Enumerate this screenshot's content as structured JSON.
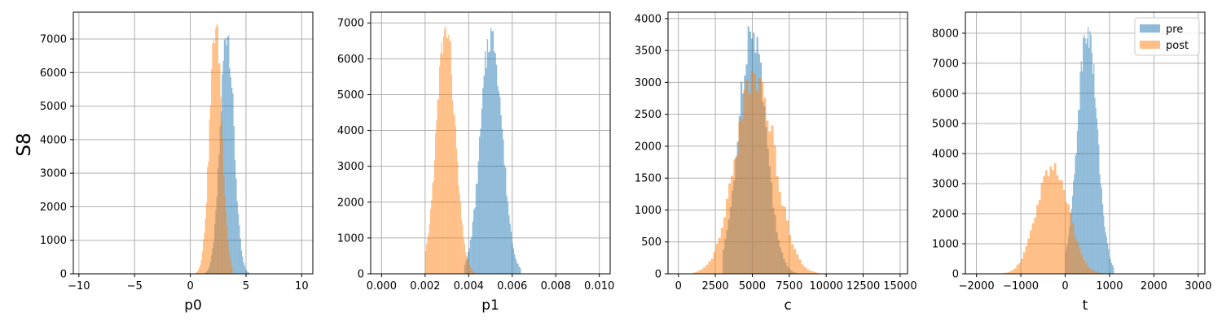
{
  "figure": {
    "row_label": "S8",
    "series_colors": {
      "pre": "#1f77b4",
      "post": "#ff7f0e"
    },
    "bar_alpha": 0.5,
    "legend": {
      "placement": "top-right",
      "panel": 3,
      "entries": [
        "pre",
        "post"
      ]
    }
  },
  "chart_data": [
    {
      "type": "histogram",
      "xlabel": "p0",
      "xlim": [
        -10.5,
        11.0
      ],
      "ylim": [
        0,
        7800
      ],
      "xticks": [
        -10,
        -5,
        0,
        5,
        10
      ],
      "xtick_labels": [
        "−10",
        "−5",
        "0",
        "5",
        "10"
      ],
      "yticks": [
        0,
        1000,
        2000,
        3000,
        4000,
        5000,
        6000,
        7000
      ],
      "yscale": "linear",
      "grid": true,
      "series": [
        {
          "name": "pre",
          "peak_center": 3.3,
          "peak_value": 7400,
          "spread": 0.6,
          "range": [
            1.0,
            5.8
          ]
        },
        {
          "name": "post",
          "peak_center": 2.3,
          "peak_value": 7550,
          "spread": 0.55,
          "range": [
            -0.8,
            3.8
          ]
        }
      ]
    },
    {
      "type": "histogram",
      "xlabel": "p1",
      "xlim": [
        -0.0005,
        0.0105
      ],
      "ylim": [
        0,
        7300
      ],
      "xticks": [
        0.0,
        0.002,
        0.004,
        0.006,
        0.008,
        0.01
      ],
      "xtick_labels": [
        "0.000",
        "0.002",
        "0.004",
        "0.006",
        "0.008",
        "0.010"
      ],
      "yticks": [
        0,
        1000,
        2000,
        3000,
        4000,
        5000,
        6000,
        7000
      ],
      "yscale": "linear",
      "grid": true,
      "series": [
        {
          "name": "pre",
          "peak_center": 0.00505,
          "peak_value": 6900,
          "spread": 0.00048,
          "range": [
            0.0038,
            0.0064
          ]
        },
        {
          "name": "post",
          "peak_center": 0.00295,
          "peak_value": 6950,
          "spread": 0.00042,
          "range": [
            0.002,
            0.0043
          ]
        }
      ]
    },
    {
      "type": "histogram",
      "xlabel": "c",
      "xlim": [
        -700,
        15500
      ],
      "ylim": [
        0,
        4100
      ],
      "xticks": [
        0,
        2500,
        5000,
        7500,
        10000,
        12500,
        15000
      ],
      "xtick_labels": [
        "0",
        "2500",
        "5000",
        "7500",
        "10000",
        "12500",
        "15000"
      ],
      "yticks": [
        0,
        500,
        1000,
        1500,
        2000,
        2500,
        3000,
        3500,
        4000
      ],
      "yscale": "linear",
      "grid": true,
      "series": [
        {
          "name": "pre",
          "peak_center": 5000,
          "peak_value": 3950,
          "spread": 900,
          "range": [
            3000,
            9000
          ]
        },
        {
          "name": "post",
          "peak_center": 5200,
          "peak_value": 3200,
          "spread": 1300,
          "range": [
            1000,
            9500
          ]
        }
      ]
    },
    {
      "type": "histogram",
      "xlabel": "t",
      "xlim": [
        -2250,
        3150
      ],
      "ylim": [
        0,
        8700
      ],
      "xticks": [
        -2000,
        -1000,
        0,
        1000,
        2000,
        3000
      ],
      "xtick_labels": [
        "−2000",
        "−1000",
        "0",
        "1000",
        "2000",
        "3000"
      ],
      "yticks": [
        0,
        1000,
        2000,
        3000,
        4000,
        5000,
        6000,
        7000,
        8000
      ],
      "yscale": "linear",
      "grid": true,
      "series": [
        {
          "name": "pre",
          "peak_center": 500,
          "peak_value": 8250,
          "spread": 220,
          "range": [
            0,
            1100
          ]
        },
        {
          "name": "post",
          "peak_center": -280,
          "peak_value": 3700,
          "spread": 350,
          "range": [
            -1600,
            900
          ]
        }
      ]
    }
  ]
}
